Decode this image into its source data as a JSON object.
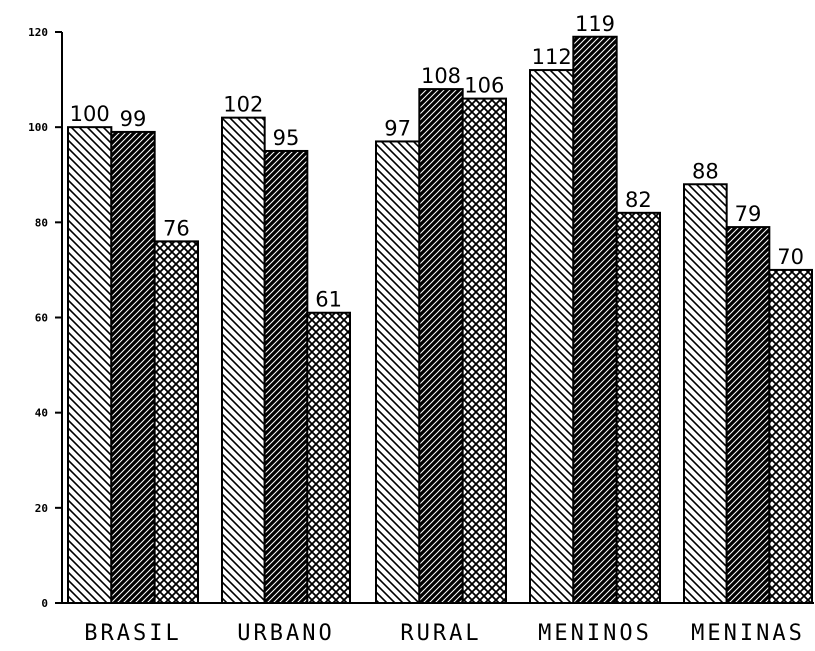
{
  "chart_data": {
    "type": "bar",
    "title": "",
    "xlabel": "",
    "ylabel": "",
    "ylim": [
      0,
      120
    ],
    "yticks": [
      0,
      20,
      40,
      60,
      80,
      100,
      120
    ],
    "ytick_labels": [
      "0",
      "20",
      "40",
      "60",
      "80",
      "100",
      "120"
    ],
    "grid": false,
    "legend": "none",
    "categories": [
      "BRASIL",
      "URBANO",
      "RURAL",
      "MENINOS",
      "MENINAS"
    ],
    "series": [
      {
        "values": [
          100,
          102,
          97,
          112,
          88
        ],
        "pattern": "thin-diagonal-hatch",
        "color": "#000000"
      },
      {
        "values": [
          99,
          95,
          108,
          119,
          79
        ],
        "pattern": "dense-diagonal-hatch",
        "color": "#000000"
      },
      {
        "values": [
          76,
          61,
          106,
          82,
          70
        ],
        "pattern": "crosshatch",
        "color": "#000000"
      }
    ],
    "data_labels": [
      [
        "100",
        "102",
        "97",
        "112",
        "88"
      ],
      [
        "99",
        "95",
        "108",
        "119",
        "79"
      ],
      [
        "76",
        "61",
        "106",
        "82",
        "70"
      ]
    ]
  }
}
